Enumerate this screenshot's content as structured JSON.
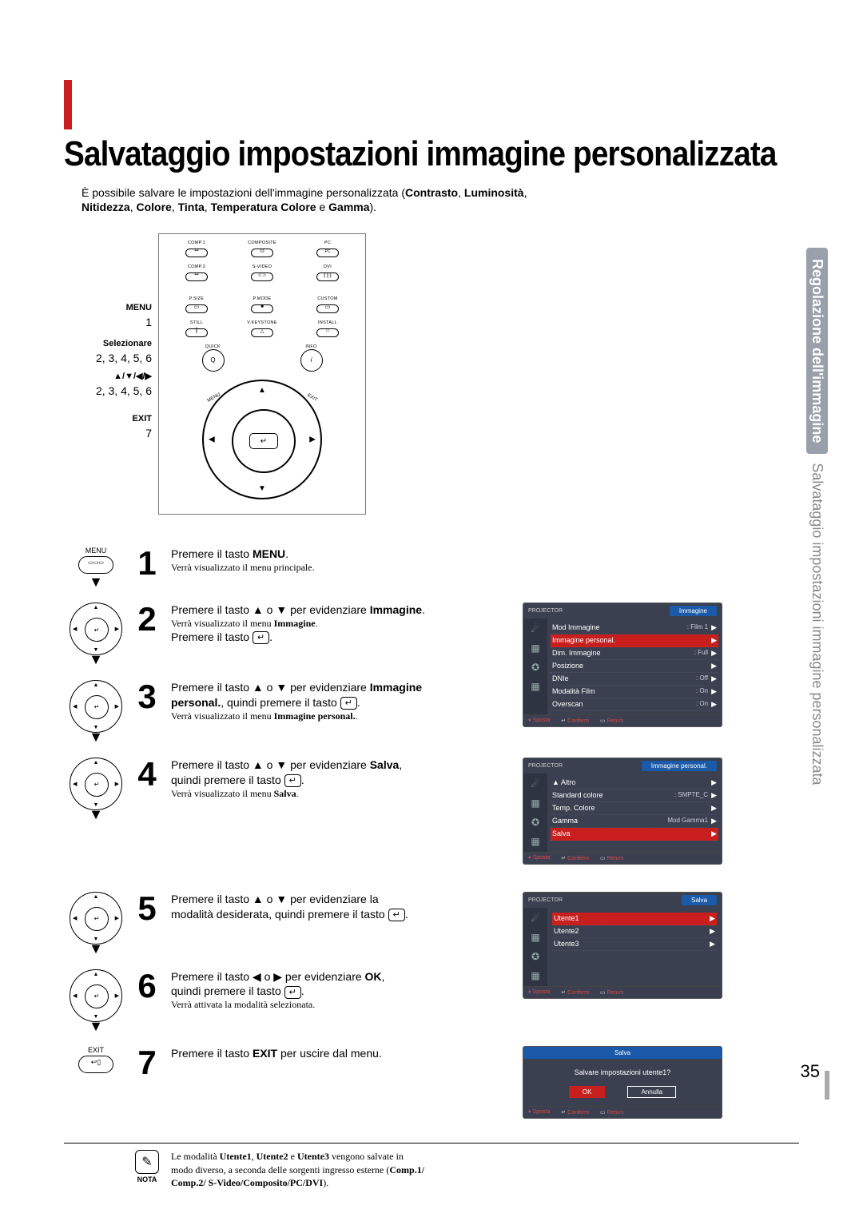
{
  "title": "Salvataggio impostazioni immagine personalizzata",
  "intro": {
    "line1_a": "È possibile salvare le impostazioni dell'immagine personalizzata (",
    "line1_b": "Contrasto",
    "line1_c": ", ",
    "line1_d": "Luminosità",
    "line1_e": ",",
    "line2_a": "Nitidezza",
    "line2_b": ", ",
    "line2_c": "Colore",
    "line2_d": ", ",
    "line2_e": "Tinta",
    "line2_f": ", ",
    "line2_g": "Temperatura Colore",
    "line2_h": " e ",
    "line2_i": "Gamma",
    "line2_j": ")."
  },
  "remote_labels": {
    "menu": "MENU",
    "menu_num": "1",
    "select": "Selezionare",
    "select_nums": "2, 3, 4, 5, 6",
    "arrows": "▲/▼/◀/▶",
    "arrows_nums": "2, 3, 4, 5, 6",
    "exit": "EXIT",
    "exit_num": "7"
  },
  "remote_buttons": {
    "r1": [
      "COMP.1",
      "COMPOSITE",
      "PC"
    ],
    "r2": [
      "COMP.2",
      "S-VIDEO",
      "DVI"
    ],
    "r3": [
      "P.SIZE",
      "P.MODE",
      "CUSTOM"
    ],
    "r4": [
      "STILL",
      "V.KEYSTONE",
      "INSTALL"
    ],
    "mid_left": "QUICK",
    "mid_right": "INFO",
    "corner_menu": "MENU",
    "corner_exit": "EXIT"
  },
  "icons": {
    "menu_label": "MENU",
    "exit_label": "EXIT"
  },
  "steps": {
    "s1": {
      "num": "1",
      "a": "Premere il tasto ",
      "b": "MENU",
      "c": ".",
      "sub": "Verrà visualizzato il menu principale."
    },
    "s2": {
      "num": "2",
      "a": "Premere il tasto ▲ o ▼ per evidenziare ",
      "b": "Immagine",
      "c": ".",
      "sub": "Verrà visualizzato il menu ",
      "sub_b": "Immagine",
      "sub_c": ".",
      "d": "Premere il tasto ",
      "icon": "↵",
      "e": "."
    },
    "s3": {
      "num": "3",
      "a": "Premere il tasto ▲ o ▼ per evidenziare ",
      "b": "Immagine",
      "c": "personal.",
      "d": ", quindi premere il tasto ",
      "icon": "↵",
      "e": ".",
      "sub": "Verrà visualizzato il menu ",
      "sub_b": "Immagine personal.",
      "sub_c": "."
    },
    "s4": {
      "num": "4",
      "a": "Premere il tasto ▲ o ▼ per evidenziare ",
      "b": "Salva",
      "c": ",",
      "d": "quindi premere il tasto ",
      "icon": "↵",
      "e": ".",
      "sub": "Verrà visualizzato il menu ",
      "sub_b": "Salva",
      "sub_c": "."
    },
    "s5": {
      "num": "5",
      "a": "Premere il tasto ▲ o ▼ per evidenziare la",
      "b": "modalità desiderata, quindi premere il tasto ",
      "icon": "↵",
      "c": "."
    },
    "s6": {
      "num": "6",
      "a": "Premere il tasto ◀ o ▶ per evidenziare ",
      "b": "OK",
      "c": ",",
      "d": "quindi premere il tasto ",
      "icon": "↵",
      "e": ".",
      "sub": "Verrà attivata la modalità selezionata."
    },
    "s7": {
      "num": "7",
      "a": "Premere il tasto ",
      "b": "EXIT",
      "c": " per uscire dal menu."
    }
  },
  "osd1": {
    "projector": "PROJECTOR",
    "tab": "Immagine",
    "rows": [
      {
        "k": "Mod Immagine",
        "v": ": Film 1"
      },
      {
        "k": "Immagine personal.",
        "v": "",
        "hi": true
      },
      {
        "k": "Dim. Immagine",
        "v": ": Full"
      },
      {
        "k": "Posizione",
        "v": ""
      },
      {
        "k": "DNIe",
        "v": ": Off"
      },
      {
        "k": "Modalità Film",
        "v": ": On"
      },
      {
        "k": "Overscan",
        "v": ": On"
      }
    ],
    "foot": [
      "Sposta",
      "Conferm",
      "Return"
    ]
  },
  "osd2": {
    "projector": "PROJECTOR",
    "tab": "Immagine personal.",
    "rows": [
      {
        "k": "▲ Altro",
        "v": ""
      },
      {
        "k": "Standard colore",
        "v": ": SMPTE_C"
      },
      {
        "k": "Temp. Colore",
        "v": ""
      },
      {
        "k": "Gamma",
        "v": "Mod Gamma1"
      },
      {
        "k": "Salva",
        "v": "",
        "hi": true
      }
    ],
    "foot": [
      "Sposta",
      "Conferm",
      "Return"
    ]
  },
  "osd3": {
    "projector": "PROJECTOR",
    "tab": "Salva",
    "rows": [
      {
        "k": "Utente1",
        "v": "",
        "hi": true
      },
      {
        "k": "Utente2",
        "v": ""
      },
      {
        "k": "Utente3",
        "v": ""
      }
    ],
    "foot": [
      "Sposta",
      "Conferm",
      "Return"
    ]
  },
  "dialog": {
    "tab": "Salva",
    "msg": "Salvare impostazioni utente1?",
    "ok": "OK",
    "cancel": "Annulla",
    "foot": [
      "Sposta",
      "Conferm",
      "Return"
    ]
  },
  "note": {
    "label": "NOTA",
    "l1a": "Le modalità ",
    "l1b": "Utente1",
    "l1c": ", ",
    "l1d": "Utente2",
    "l1e": " e ",
    "l1f": "Utente3",
    "l1g": " vengono salvate in",
    "l2a": "modo diverso, a seconda delle sorgenti ingresso esterne (",
    "l2b": "Comp.1/",
    "l3a": "Comp.2/ S-Video/Composito/PC/DVI",
    "l3b": ")."
  },
  "sidebar": {
    "a": "Regolazione dell'immagine",
    "b": "Salvataggio impostazioni immagine personalizzata"
  },
  "pagenum": "35",
  "osd_icon_set": [
    "☄",
    "▦",
    "✪",
    "▦"
  ]
}
